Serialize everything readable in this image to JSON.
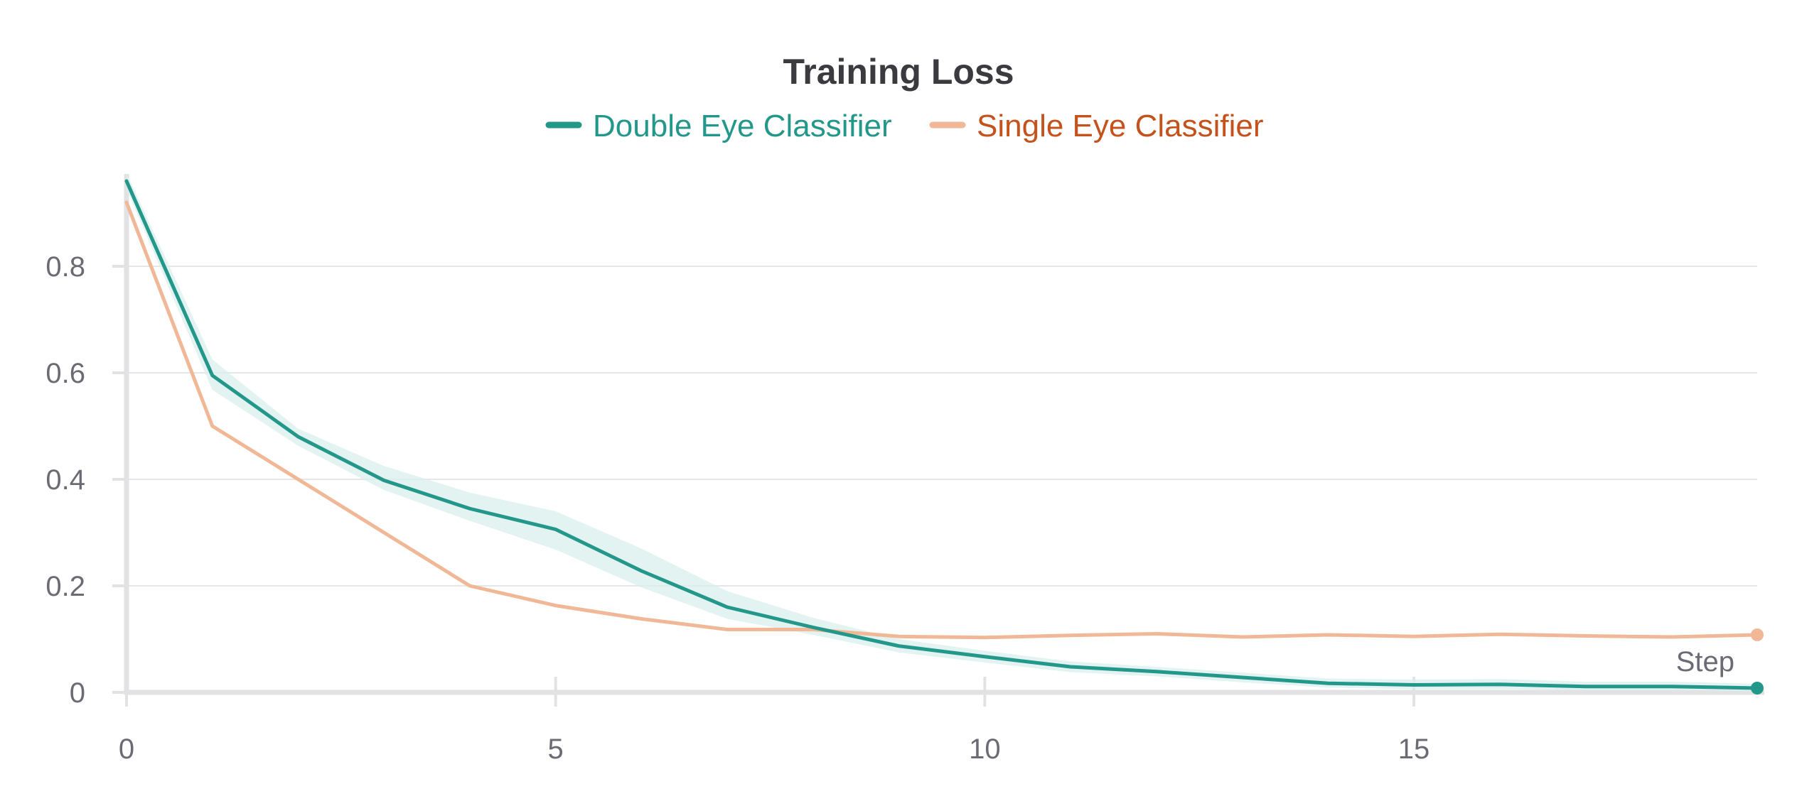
{
  "chart_data": {
    "type": "line",
    "title": "Training Loss",
    "xlabel": "Step",
    "ylabel": "",
    "xlim": [
      0,
      19
    ],
    "ylim": [
      0,
      0.98
    ],
    "x_ticks": [
      "0",
      "5",
      "10",
      "15"
    ],
    "y_ticks": [
      "0",
      "0.2",
      "0.4",
      "0.6",
      "0.8"
    ],
    "grid": "horizontal",
    "legend_position": "top-center",
    "x": [
      0,
      1,
      2,
      3,
      4,
      5,
      6,
      7,
      8,
      9,
      10,
      11,
      12,
      13,
      14,
      15,
      16,
      17,
      18,
      19
    ],
    "series": [
      {
        "name": "Double Eye Classifier",
        "color": "#23978a",
        "band_color": "#d8efec",
        "values": [
          0.96,
          0.595,
          0.48,
          0.398,
          0.345,
          0.306,
          0.228,
          0.16,
          0.122,
          0.087,
          0.067,
          0.048,
          0.039,
          0.028,
          0.017,
          0.014,
          0.015,
          0.011,
          0.011,
          0.008
        ],
        "band_upper": [
          0.975,
          0.625,
          0.495,
          0.425,
          0.375,
          0.34,
          0.27,
          0.19,
          0.14,
          0.1,
          0.078,
          0.058,
          0.048,
          0.037,
          0.026,
          0.024,
          0.025,
          0.02,
          0.02,
          0.016
        ],
        "band_lower": [
          0.945,
          0.568,
          0.463,
          0.38,
          0.322,
          0.268,
          0.197,
          0.138,
          0.108,
          0.075,
          0.056,
          0.038,
          0.03,
          0.019,
          0.009,
          0.006,
          0.006,
          0.004,
          0.004,
          0.002
        ]
      },
      {
        "name": "Single Eye Classifier",
        "color": "#f0b896",
        "legend_text_color": "#c4521c",
        "values": [
          0.92,
          0.5,
          0.4,
          0.3,
          0.2,
          0.163,
          0.138,
          0.118,
          0.118,
          0.105,
          0.103,
          0.107,
          0.11,
          0.104,
          0.108,
          0.105,
          0.109,
          0.106,
          0.104,
          0.108
        ]
      }
    ]
  }
}
